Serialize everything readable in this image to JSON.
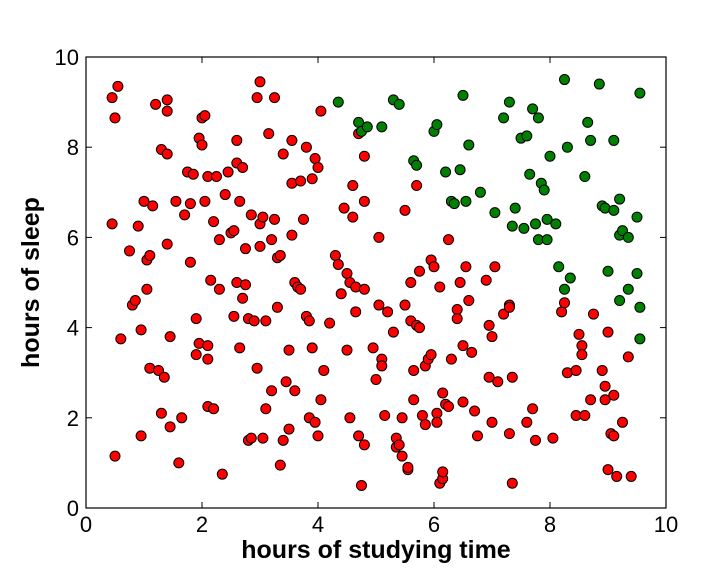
{
  "chart_data": {
    "type": "scatter",
    "title": "",
    "xlabel": "hours of studying time",
    "ylabel": "hours of sleep",
    "xlim": [
      0,
      10
    ],
    "ylim": [
      0,
      10
    ],
    "xticks": [
      "0",
      "2",
      "4",
      "6",
      "8",
      "10"
    ],
    "yticks": [
      "0",
      "2",
      "4",
      "6",
      "8",
      "10"
    ],
    "grid": false,
    "colors": {
      "class_a": "#ff0000",
      "class_b": "#008000",
      "edge": "#000000"
    },
    "series": [
      {
        "color": "#ff0000",
        "points": [
          [
            0.45,
            9.1
          ],
          [
            0.55,
            9.35
          ],
          [
            0.5,
            8.65
          ],
          [
            0.45,
            6.3
          ],
          [
            0.6,
            3.75
          ],
          [
            0.5,
            1.15
          ],
          [
            0.75,
            5.7
          ],
          [
            0.8,
            4.5
          ],
          [
            0.85,
            4.6
          ],
          [
            0.9,
            6.25
          ],
          [
            0.95,
            3.95
          ],
          [
            0.95,
            1.6
          ],
          [
            1.0,
            6.8
          ],
          [
            1.05,
            5.5
          ],
          [
            1.1,
            5.6
          ],
          [
            1.05,
            4.85
          ],
          [
            1.1,
            3.1
          ],
          [
            1.15,
            6.7
          ],
          [
            1.2,
            8.95
          ],
          [
            1.25,
            3.05
          ],
          [
            1.3,
            7.95
          ],
          [
            1.3,
            2.1
          ],
          [
            1.35,
            2.9
          ],
          [
            1.4,
            7.85
          ],
          [
            1.4,
            9.05
          ],
          [
            1.4,
            8.8
          ],
          [
            1.4,
            5.85
          ],
          [
            1.45,
            3.8
          ],
          [
            1.45,
            1.8
          ],
          [
            1.55,
            6.8
          ],
          [
            1.65,
            2.0
          ],
          [
            1.7,
            6.5
          ],
          [
            1.6,
            1.0
          ],
          [
            1.75,
            7.45
          ],
          [
            1.8,
            6.75
          ],
          [
            1.8,
            5.45
          ],
          [
            1.85,
            7.4
          ],
          [
            1.9,
            4.2
          ],
          [
            1.9,
            3.4
          ],
          [
            1.95,
            3.65
          ],
          [
            1.95,
            8.2
          ],
          [
            2.0,
            8.65
          ],
          [
            2.0,
            8.05
          ],
          [
            2.05,
            8.7
          ],
          [
            2.05,
            6.8
          ],
          [
            2.1,
            7.35
          ],
          [
            2.1,
            3.6
          ],
          [
            2.1,
            3.3
          ],
          [
            2.1,
            2.25
          ],
          [
            2.15,
            5.05
          ],
          [
            2.2,
            6.35
          ],
          [
            2.2,
            2.2
          ],
          [
            2.25,
            7.35
          ],
          [
            2.3,
            4.85
          ],
          [
            2.3,
            5.95
          ],
          [
            2.35,
            0.75
          ],
          [
            2.4,
            6.95
          ],
          [
            2.45,
            7.45
          ],
          [
            2.5,
            6.1
          ],
          [
            2.55,
            6.15
          ],
          [
            2.55,
            4.25
          ],
          [
            2.6,
            7.65
          ],
          [
            2.6,
            8.15
          ],
          [
            2.6,
            5.0
          ],
          [
            2.65,
            3.55
          ],
          [
            2.65,
            6.8
          ],
          [
            2.7,
            4.65
          ],
          [
            2.7,
            7.55
          ],
          [
            2.75,
            5.75
          ],
          [
            2.75,
            4.95
          ],
          [
            2.8,
            4.2
          ],
          [
            2.8,
            1.5
          ],
          [
            2.85,
            1.55
          ],
          [
            2.85,
            6.5
          ],
          [
            2.9,
            4.15
          ],
          [
            2.95,
            9.1
          ],
          [
            2.95,
            3.1
          ],
          [
            3.0,
            9.45
          ],
          [
            3.0,
            6.3
          ],
          [
            3.0,
            5.8
          ],
          [
            3.05,
            6.45
          ],
          [
            3.05,
            1.55
          ],
          [
            3.1,
            4.15
          ],
          [
            3.1,
            2.2
          ],
          [
            3.15,
            8.3
          ],
          [
            3.2,
            5.95
          ],
          [
            3.2,
            2.6
          ],
          [
            3.25,
            9.1
          ],
          [
            3.25,
            6.4
          ],
          [
            3.3,
            5.55
          ],
          [
            3.3,
            4.45
          ],
          [
            3.35,
            0.95
          ],
          [
            3.35,
            5.6
          ],
          [
            3.4,
            7.85
          ],
          [
            3.4,
            1.5
          ],
          [
            3.45,
            2.8
          ],
          [
            3.5,
            3.5
          ],
          [
            3.5,
            1.75
          ],
          [
            3.55,
            8.15
          ],
          [
            3.55,
            7.2
          ],
          [
            3.55,
            6.05
          ],
          [
            3.6,
            5.0
          ],
          [
            3.6,
            2.6
          ],
          [
            3.65,
            4.9
          ],
          [
            3.7,
            4.85
          ],
          [
            3.7,
            7.25
          ],
          [
            3.75,
            6.4
          ],
          [
            3.8,
            8.0
          ],
          [
            3.8,
            4.25
          ],
          [
            3.85,
            4.15
          ],
          [
            3.85,
            2.0
          ],
          [
            3.9,
            7.3
          ],
          [
            3.9,
            3.55
          ],
          [
            3.95,
            7.75
          ],
          [
            3.95,
            1.9
          ],
          [
            4.0,
            7.55
          ],
          [
            4.0,
            1.6
          ],
          [
            4.05,
            8.8
          ],
          [
            4.05,
            2.4
          ],
          [
            4.1,
            3.05
          ],
          [
            4.2,
            4.1
          ],
          [
            4.3,
            5.6
          ],
          [
            4.35,
            5.4
          ],
          [
            4.4,
            4.75
          ],
          [
            4.45,
            6.65
          ],
          [
            4.5,
            5.2
          ],
          [
            4.5,
            3.5
          ],
          [
            4.55,
            5.0
          ],
          [
            4.55,
            2.0
          ],
          [
            4.6,
            7.15
          ],
          [
            4.6,
            6.45
          ],
          [
            4.65,
            4.9
          ],
          [
            4.65,
            4.35
          ],
          [
            4.7,
            8.3
          ],
          [
            4.7,
            1.6
          ],
          [
            4.75,
            0.5
          ],
          [
            4.8,
            7.8
          ],
          [
            4.8,
            6.8
          ],
          [
            4.8,
            4.85
          ],
          [
            4.8,
            1.4
          ],
          [
            4.95,
            3.55
          ],
          [
            5.0,
            2.85
          ],
          [
            5.05,
            6.0
          ],
          [
            5.05,
            4.5
          ],
          [
            5.1,
            3.3
          ],
          [
            5.1,
            3.15
          ],
          [
            5.15,
            2.05
          ],
          [
            5.2,
            4.35
          ],
          [
            5.3,
            3.9
          ],
          [
            5.35,
            1.35
          ],
          [
            5.35,
            1.55
          ],
          [
            5.4,
            1.4
          ],
          [
            5.45,
            1.15
          ],
          [
            5.45,
            2.0
          ],
          [
            5.5,
            6.6
          ],
          [
            5.5,
            4.5
          ],
          [
            5.55,
            0.85
          ],
          [
            5.55,
            0.9
          ],
          [
            5.6,
            5.0
          ],
          [
            5.6,
            4.15
          ],
          [
            5.65,
            3.05
          ],
          [
            5.65,
            2.4
          ],
          [
            5.7,
            7.15
          ],
          [
            5.7,
            4.05
          ],
          [
            5.75,
            5.25
          ],
          [
            5.75,
            4.0
          ],
          [
            5.8,
            2.05
          ],
          [
            5.85,
            3.15
          ],
          [
            5.85,
            1.85
          ],
          [
            5.9,
            3.3
          ],
          [
            5.95,
            5.5
          ],
          [
            5.95,
            3.4
          ],
          [
            6.0,
            5.35
          ],
          [
            6.05,
            2.1
          ],
          [
            6.05,
            1.9
          ],
          [
            6.1,
            4.9
          ],
          [
            6.1,
            0.55
          ],
          [
            6.15,
            0.65
          ],
          [
            6.15,
            2.55
          ],
          [
            6.15,
            0.8
          ],
          [
            6.2,
            2.3
          ],
          [
            6.25,
            5.95
          ],
          [
            6.25,
            2.25
          ],
          [
            6.3,
            3.3
          ],
          [
            6.4,
            4.4
          ],
          [
            6.4,
            4.2
          ],
          [
            6.45,
            5.0
          ],
          [
            6.5,
            3.6
          ],
          [
            6.5,
            2.35
          ],
          [
            6.55,
            5.35
          ],
          [
            6.6,
            4.6
          ],
          [
            6.65,
            3.45
          ],
          [
            6.7,
            2.15
          ],
          [
            6.75,
            1.6
          ],
          [
            6.9,
            5.05
          ],
          [
            6.95,
            2.9
          ],
          [
            6.95,
            4.05
          ],
          [
            7.0,
            3.8
          ],
          [
            7.0,
            1.9
          ],
          [
            7.05,
            5.35
          ],
          [
            7.1,
            2.8
          ],
          [
            7.2,
            4.3
          ],
          [
            7.3,
            4.5
          ],
          [
            7.3,
            4.45
          ],
          [
            7.3,
            1.65
          ],
          [
            7.35,
            2.9
          ],
          [
            7.35,
            0.55
          ],
          [
            7.6,
            1.9
          ],
          [
            7.7,
            2.2
          ],
          [
            7.75,
            1.5
          ],
          [
            8.05,
            1.55
          ],
          [
            8.2,
            4.35
          ],
          [
            8.25,
            4.55
          ],
          [
            8.3,
            3.0
          ],
          [
            8.45,
            3.05
          ],
          [
            8.45,
            2.05
          ],
          [
            8.5,
            3.85
          ],
          [
            8.55,
            3.6
          ],
          [
            8.55,
            3.4
          ],
          [
            8.6,
            2.05
          ],
          [
            8.7,
            2.4
          ],
          [
            8.75,
            4.3
          ],
          [
            8.9,
            3.05
          ],
          [
            8.95,
            2.7
          ],
          [
            8.95,
            2.4
          ],
          [
            9.0,
            3.9
          ],
          [
            9.0,
            0.85
          ],
          [
            9.05,
            1.65
          ],
          [
            9.1,
            1.6
          ],
          [
            9.1,
            2.5
          ],
          [
            9.15,
            0.7
          ],
          [
            9.25,
            1.9
          ],
          [
            9.35,
            3.35
          ],
          [
            9.4,
            0.7
          ]
        ]
      },
      {
        "color": "#008000",
        "points": [
          [
            4.35,
            9.0
          ],
          [
            4.7,
            8.55
          ],
          [
            4.75,
            8.35
          ],
          [
            4.85,
            8.45
          ],
          [
            5.1,
            8.45
          ],
          [
            5.3,
            9.05
          ],
          [
            5.4,
            8.95
          ],
          [
            5.65,
            7.7
          ],
          [
            5.7,
            7.6
          ],
          [
            6.0,
            8.35
          ],
          [
            6.05,
            8.5
          ],
          [
            6.2,
            7.45
          ],
          [
            6.3,
            6.8
          ],
          [
            6.35,
            6.75
          ],
          [
            6.45,
            7.5
          ],
          [
            6.5,
            9.15
          ],
          [
            6.55,
            6.8
          ],
          [
            6.6,
            8.05
          ],
          [
            6.8,
            7.0
          ],
          [
            7.05,
            6.55
          ],
          [
            7.2,
            8.65
          ],
          [
            7.3,
            9.0
          ],
          [
            7.35,
            6.25
          ],
          [
            7.4,
            6.65
          ],
          [
            7.5,
            8.2
          ],
          [
            7.55,
            6.2
          ],
          [
            7.6,
            8.25
          ],
          [
            7.65,
            7.4
          ],
          [
            7.7,
            8.85
          ],
          [
            7.75,
            6.3
          ],
          [
            7.8,
            8.65
          ],
          [
            7.8,
            5.95
          ],
          [
            7.85,
            7.2
          ],
          [
            7.9,
            7.05
          ],
          [
            7.95,
            5.95
          ],
          [
            7.95,
            6.4
          ],
          [
            8.0,
            7.8
          ],
          [
            8.1,
            6.3
          ],
          [
            8.15,
            5.35
          ],
          [
            8.25,
            4.85
          ],
          [
            8.25,
            9.5
          ],
          [
            8.3,
            8.0
          ],
          [
            8.35,
            5.1
          ],
          [
            8.6,
            7.35
          ],
          [
            8.65,
            8.55
          ],
          [
            8.7,
            8.15
          ],
          [
            8.85,
            9.4
          ],
          [
            8.9,
            6.7
          ],
          [
            8.95,
            6.65
          ],
          [
            9.0,
            5.25
          ],
          [
            9.1,
            8.15
          ],
          [
            9.1,
            6.6
          ],
          [
            9.2,
            6.85
          ],
          [
            9.2,
            6.05
          ],
          [
            9.2,
            4.6
          ],
          [
            9.25,
            6.15
          ],
          [
            9.35,
            6.0
          ],
          [
            9.35,
            4.85
          ],
          [
            9.5,
            6.45
          ],
          [
            9.5,
            5.2
          ],
          [
            9.55,
            9.2
          ],
          [
            9.55,
            4.45
          ],
          [
            9.55,
            3.75
          ]
        ]
      }
    ]
  }
}
